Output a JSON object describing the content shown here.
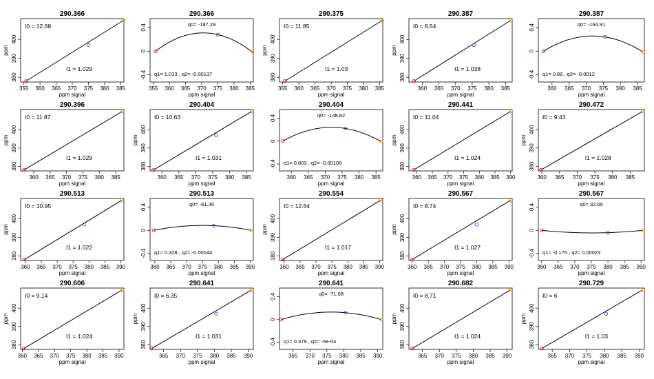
{
  "figure": {
    "xlabel": "ppm signal",
    "ylabel": "ppm",
    "line_color": "#000000",
    "point_colors": [
      "#e31a1c",
      "#7b2fe0",
      "#f39c12"
    ]
  },
  "chart_data": [
    {
      "type": "line",
      "kind": "linear",
      "title": "290.366",
      "xlabel": "ppm signal",
      "ylabel": "ppm",
      "xlim": [
        354,
        386
      ],
      "ylim": [
        377.5,
        411
      ],
      "xticks": [
        355,
        360,
        365,
        370,
        375,
        380,
        385
      ],
      "yticks": [
        380,
        390,
        400
      ],
      "points": [
        [
          355.7,
          378
        ],
        [
          375,
          397
        ],
        [
          385.8,
          410
        ]
      ],
      "annotations": {
        "i0": "I0 =  12.68",
        "i1": "I1 =  1.029"
      }
    },
    {
      "type": "line",
      "kind": "quadratic",
      "title": "290.366",
      "xlabel": "ppm signal",
      "ylabel": "",
      "xlim": [
        354,
        386
      ],
      "ylim": [
        -0.52,
        0.55
      ],
      "xticks": [
        355,
        360,
        365,
        370,
        375,
        380,
        385
      ],
      "yticks": [
        -0.4,
        0.0,
        0.4
      ],
      "points": [
        [
          355.7,
          0.0
        ],
        [
          375,
          0.28
        ],
        [
          385.8,
          -0.02
        ]
      ],
      "annotations": {
        "q0": "q0= -187.29",
        "q12": "q1= 1.013 , q2= -0.00137"
      }
    },
    {
      "type": "line",
      "kind": "linear",
      "title": "290.375",
      "xlabel": "ppm signal",
      "ylabel": "ppm",
      "xlim": [
        354,
        386
      ],
      "ylim": [
        377.5,
        411
      ],
      "xticks": [
        355,
        360,
        365,
        370,
        375,
        380,
        385
      ],
      "yticks": [
        380,
        390,
        400
      ],
      "points": [
        [
          355.7,
          378
        ],
        [
          385.8,
          410
        ]
      ],
      "annotations": {
        "i0": "I0 =  11.85",
        "i1": "I1 =  1.03"
      }
    },
    {
      "type": "line",
      "kind": "linear",
      "title": "290.387",
      "xlabel": "ppm signal",
      "ylabel": "ppm",
      "xlim": [
        356,
        387
      ],
      "ylim": [
        377.5,
        411
      ],
      "xticks": [
        360,
        365,
        370,
        375,
        380,
        385
      ],
      "yticks": [
        380,
        390,
        400
      ],
      "points": [
        [
          357.5,
          378
        ],
        [
          375.5,
          397
        ],
        [
          386.5,
          410
        ]
      ],
      "annotations": {
        "i0": "I0 =  8.54",
        "i1": "I1 =  1.038"
      }
    },
    {
      "type": "line",
      "kind": "quadratic",
      "title": "290.387",
      "xlabel": "ppm signal",
      "ylabel": "",
      "xlim": [
        356,
        387
      ],
      "ylim": [
        -0.52,
        0.55
      ],
      "xticks": [
        360,
        365,
        370,
        375,
        380,
        385
      ],
      "yticks": [
        -0.4,
        0.0,
        0.4
      ],
      "points": [
        [
          357.5,
          0.0
        ],
        [
          375.5,
          0.24
        ],
        [
          386.5,
          -0.01
        ]
      ],
      "annotations": {
        "q0": "q0= -164.91",
        "q12": "q1= 0.89 , q2= -0.0012"
      }
    },
    {
      "type": "line",
      "kind": "linear",
      "title": "290.396",
      "xlabel": "ppm signal",
      "ylabel": "ppm",
      "xlim": [
        356,
        387.5
      ],
      "ylim": [
        377.5,
        411
      ],
      "xticks": [
        360,
        365,
        370,
        375,
        380,
        385
      ],
      "yticks": [
        380,
        390,
        400
      ],
      "points": [
        [
          357,
          378
        ],
        [
          387,
          410
        ]
      ],
      "annotations": {
        "i0": "I0 =  11.87",
        "i1": "I1 =  1.029"
      }
    },
    {
      "type": "line",
      "kind": "linear",
      "title": "290.404",
      "xlabel": "ppm signal",
      "ylabel": "ppm",
      "xlim": [
        356.5,
        387
      ],
      "ylim": [
        377.5,
        411
      ],
      "xticks": [
        360,
        365,
        370,
        375,
        380,
        385
      ],
      "yticks": [
        380,
        390,
        400
      ],
      "points": [
        [
          357.5,
          378
        ],
        [
          376,
          397
        ],
        [
          386.5,
          410
        ]
      ],
      "annotations": {
        "i0": "I0 =  10.63",
        "i1": "I1 =  1.031"
      }
    },
    {
      "type": "line",
      "kind": "quadratic",
      "title": "290.404",
      "xlabel": "ppm signal",
      "ylabel": "",
      "xlim": [
        356.5,
        387
      ],
      "ylim": [
        -0.52,
        0.55
      ],
      "xticks": [
        360,
        365,
        370,
        375,
        380,
        385
      ],
      "yticks": [
        -0.4,
        0.0,
        0.4
      ],
      "points": [
        [
          357.5,
          0.0
        ],
        [
          376,
          0.22
        ],
        [
          386.5,
          -0.01
        ]
      ],
      "annotations": {
        "q0": "q0= -148.82",
        "q12": "q1= 0.803 , q2= -0.00108"
      }
    },
    {
      "type": "line",
      "kind": "linear",
      "title": "290.441",
      "xlabel": "ppm signal",
      "ylabel": "ppm",
      "xlim": [
        357.5,
        390.5
      ],
      "ylim": [
        377.5,
        411
      ],
      "xticks": [
        360,
        365,
        370,
        375,
        380,
        385,
        390
      ],
      "yticks": [
        380,
        390,
        400
      ],
      "points": [
        [
          359,
          378
        ],
        [
          390,
          410
        ]
      ],
      "annotations": {
        "i0": "I0 =  11.04",
        "i1": "I1 =  1.024"
      }
    },
    {
      "type": "line",
      "kind": "linear",
      "title": "290.472",
      "xlabel": "ppm signal",
      "ylabel": "ppm",
      "xlim": [
        359,
        389
      ],
      "ylim": [
        377.5,
        411
      ],
      "xticks": [
        360,
        365,
        370,
        375,
        380,
        385
      ],
      "yticks": [
        380,
        390,
        400
      ],
      "points": [
        [
          359.7,
          378
        ],
        [
          388.5,
          410
        ]
      ],
      "annotations": {
        "i0": "I0 =  9.43",
        "i1": "I1 =  1.028"
      }
    },
    {
      "type": "line",
      "kind": "linear",
      "title": "290.513",
      "xlabel": "ppm signal",
      "ylabel": "ppm",
      "xlim": [
        358.5,
        391
      ],
      "ylim": [
        377.5,
        411
      ],
      "xticks": [
        360,
        365,
        370,
        375,
        380,
        385,
        390
      ],
      "yticks": [
        380,
        390,
        400
      ],
      "points": [
        [
          359.7,
          378
        ],
        [
          378.5,
          397
        ],
        [
          390.3,
          410
        ]
      ],
      "annotations": {
        "i0": "I0 =  10.95",
        "i1": "I1 =  1.022"
      }
    },
    {
      "type": "line",
      "kind": "quadratic",
      "title": "290.513",
      "xlabel": "ppm signal",
      "ylabel": "",
      "xlim": [
        358.5,
        391
      ],
      "ylim": [
        -0.52,
        0.55
      ],
      "xticks": [
        360,
        365,
        370,
        375,
        380,
        385,
        390
      ],
      "yticks": [
        -0.4,
        0.0,
        0.4
      ],
      "points": [
        [
          359.7,
          0.0
        ],
        [
          378.5,
          0.08
        ],
        [
          390.3,
          0.0
        ]
      ],
      "annotations": {
        "q0": "q0= -61.36",
        "q12": "q1= 0.328 , q2= -0.00044"
      }
    },
    {
      "type": "line",
      "kind": "linear",
      "title": "290.554",
      "xlabel": "ppm signal",
      "ylabel": "ppm",
      "xlim": [
        358.5,
        391
      ],
      "ylim": [
        377.5,
        411
      ],
      "xticks": [
        360,
        365,
        370,
        375,
        380,
        385,
        390
      ],
      "yticks": [
        380,
        390,
        400
      ],
      "points": [
        [
          359.5,
          378
        ],
        [
          390.3,
          410
        ]
      ],
      "annotations": {
        "i0": "I0 =  12.64",
        "i1": "I1 =  1.017"
      }
    },
    {
      "type": "line",
      "kind": "linear",
      "title": "290.567",
      "xlabel": "ppm signal",
      "ylabel": "ppm",
      "xlim": [
        359,
        391
      ],
      "ylim": [
        377.5,
        411
      ],
      "xticks": [
        360,
        365,
        370,
        375,
        380,
        385,
        390
      ],
      "yticks": [
        380,
        390,
        400
      ],
      "points": [
        [
          360,
          378
        ],
        [
          380,
          397
        ],
        [
          390.5,
          410
        ]
      ],
      "annotations": {
        "i0": "I0 =  8.74",
        "i1": "I1 =  1.027"
      }
    },
    {
      "type": "line",
      "kind": "quadratic",
      "title": "290.567",
      "xlabel": "ppm signal",
      "ylabel": "",
      "xlim": [
        359,
        391
      ],
      "ylim": [
        -0.52,
        0.55
      ],
      "xticks": [
        360,
        365,
        370,
        375,
        380,
        385,
        390
      ],
      "yticks": [
        -0.4,
        0.0,
        0.4
      ],
      "points": [
        [
          360,
          0.0
        ],
        [
          380,
          -0.04
        ],
        [
          390.5,
          0.0
        ]
      ],
      "annotations": {
        "q0": "q0= 32.69",
        "q12": "q1= -0.175 , q2= 0.00023"
      }
    },
    {
      "type": "line",
      "kind": "linear",
      "title": "290.606",
      "xlabel": "ppm signal",
      "ylabel": "ppm",
      "xlim": [
        359.5,
        391.5
      ],
      "ylim": [
        377.5,
        411
      ],
      "xticks": [
        360,
        365,
        370,
        375,
        380,
        385,
        390
      ],
      "yticks": [
        380,
        390,
        400
      ],
      "points": [
        [
          360.5,
          378
        ],
        [
          391,
          410
        ]
      ],
      "annotations": {
        "i0": "I0 =  9.14",
        "i1": "I1 =  1.024"
      }
    },
    {
      "type": "line",
      "kind": "linear",
      "title": "290.641",
      "xlabel": "ppm signal",
      "ylabel": "ppm",
      "xlim": [
        361,
        391.5
      ],
      "ylim": [
        377.5,
        411
      ],
      "xticks": [
        365,
        370,
        375,
        380,
        385,
        390
      ],
      "yticks": [
        380,
        390,
        400
      ],
      "points": [
        [
          361.5,
          378
        ],
        [
          380.5,
          397
        ],
        [
          391,
          410
        ]
      ],
      "annotations": {
        "i0": "I0 =  6.35",
        "i1": "I1 =  1.031"
      }
    },
    {
      "type": "line",
      "kind": "quadratic",
      "title": "290.641",
      "xlabel": "ppm signal",
      "ylabel": "",
      "xlim": [
        361,
        391.5
      ],
      "ylim": [
        -0.52,
        0.55
      ],
      "xticks": [
        365,
        370,
        375,
        380,
        385,
        390
      ],
      "yticks": [
        -0.4,
        0.0,
        0.4
      ],
      "points": [
        [
          361.5,
          0.0
        ],
        [
          380.5,
          0.12
        ],
        [
          391,
          0.0
        ]
      ],
      "annotations": {
        "q0": "q0= -71.08",
        "q12": "q1= 0.379 , q2= -5e-04"
      }
    },
    {
      "type": "line",
      "kind": "linear",
      "title": "290.682",
      "xlabel": "ppm signal",
      "ylabel": "ppm",
      "xlim": [
        361,
        391.5
      ],
      "ylim": [
        377.5,
        411
      ],
      "xticks": [
        365,
        370,
        375,
        380,
        385,
        390
      ],
      "yticks": [
        380,
        390,
        400
      ],
      "points": [
        [
          362,
          378
        ],
        [
          391,
          410
        ]
      ],
      "annotations": {
        "i0": "I0 =  8.71",
        "i1": "I1 =  1.024"
      }
    },
    {
      "type": "line",
      "kind": "linear",
      "title": "290.729",
      "xlabel": "ppm signal",
      "ylabel": "ppm",
      "xlim": [
        361,
        391.5
      ],
      "ylim": [
        377.5,
        411
      ],
      "xticks": [
        365,
        370,
        375,
        380,
        385,
        390
      ],
      "yticks": [
        380,
        390,
        400
      ],
      "points": [
        [
          362,
          378
        ],
        [
          380.5,
          397
        ],
        [
          391,
          410
        ]
      ],
      "annotations": {
        "i0": "I0 =  6",
        "i1": "I1 =  1.03"
      }
    }
  ]
}
